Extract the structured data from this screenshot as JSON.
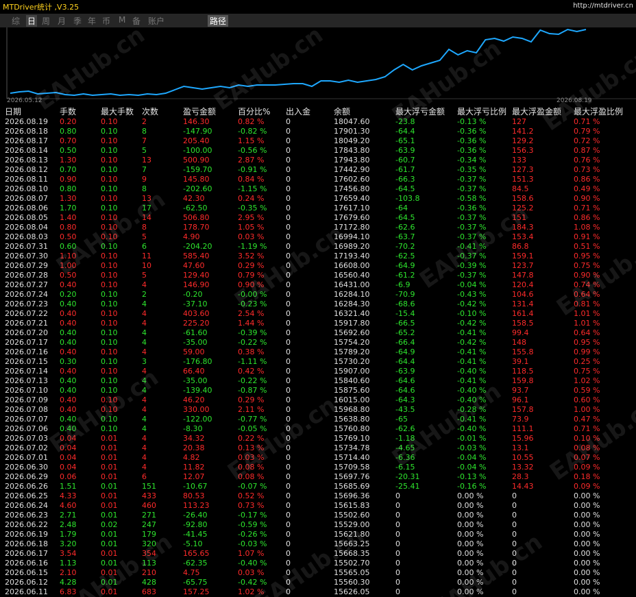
{
  "header": {
    "title": "MTDriver统计 ,V3.25",
    "url": "http://mtdriver.cn"
  },
  "tabs": [
    "综",
    "日",
    "周",
    "月",
    "季",
    "年",
    "币",
    "M",
    "备",
    "账户"
  ],
  "active_tab": 1,
  "path_button": "路径",
  "watermark": "EAHub.cn",
  "chart": {
    "type": "line",
    "color": "#1ea8ff",
    "x_start": "2026.05.12",
    "x_end": "2026.08.19",
    "ylim": [
      14800,
      18200
    ],
    "values": [
      15000,
      15067,
      15100,
      14967,
      15000,
      15033,
      14933,
      14900,
      14967,
      14900,
      14933,
      14967,
      14900,
      14933,
      14900,
      14967,
      14933,
      15000,
      15167,
      15333,
      15267,
      15200,
      15267,
      15333,
      15267,
      15400,
      15333,
      15400,
      15400,
      15400,
      15433,
      15467,
      15467,
      15333,
      15600,
      15600,
      15533,
      15633,
      15533,
      15600,
      15667,
      15800,
      16133,
      16400,
      16133,
      16333,
      16467,
      16600,
      17133,
      16867,
      17067,
      16967,
      17600,
      17667,
      17533,
      17733,
      17667,
      17500,
      18067,
      17900,
      17867,
      18100,
      18000,
      18100
    ]
  },
  "table": {
    "columns": [
      "日期",
      "手数",
      "最大手数",
      "次数",
      "盈亏金额",
      "百分比%",
      "出入金",
      "余额",
      "最大浮亏金额",
      "最大浮亏比例",
      "最大浮盈金额",
      "最大浮盈比例"
    ],
    "rows": [
      [
        "2026.08.19",
        "0.20",
        "0.10",
        "2",
        "146.30",
        "0.82 %",
        "0",
        "18047.60",
        "-23.8",
        "-0.13 %",
        "127",
        "0.71 %"
      ],
      [
        "2026.08.18",
        "0.80",
        "0.10",
        "8",
        "-147.90",
        "-0.82 %",
        "0",
        "17901.30",
        "-64.4",
        "-0.36 %",
        "141.2",
        "0.79 %"
      ],
      [
        "2026.08.17",
        "0.70",
        "0.10",
        "7",
        "205.40",
        "1.15 %",
        "0",
        "18049.20",
        "-65.1",
        "-0.36 %",
        "129.2",
        "0.72 %"
      ],
      [
        "2026.08.14",
        "0.50",
        "0.10",
        "5",
        "-100.00",
        "-0.56 %",
        "0",
        "17843.80",
        "-63.9",
        "-0.36 %",
        "156.3",
        "0.87 %"
      ],
      [
        "2026.08.13",
        "1.30",
        "0.10",
        "13",
        "500.90",
        "2.87 %",
        "0",
        "17943.80",
        "-60.7",
        "-0.34 %",
        "133",
        "0.76 %"
      ],
      [
        "2026.08.12",
        "0.70",
        "0.10",
        "7",
        "-159.70",
        "-0.91 %",
        "0",
        "17442.90",
        "-61.7",
        "-0.35 %",
        "127.3",
        "0.73 %"
      ],
      [
        "2026.08.11",
        "0.90",
        "0.10",
        "9",
        "145.80",
        "0.84 %",
        "0",
        "17602.60",
        "-66.3",
        "-0.37 %",
        "151.3",
        "0.86 %"
      ],
      [
        "2026.08.10",
        "0.80",
        "0.10",
        "8",
        "-202.60",
        "-1.15 %",
        "0",
        "17456.80",
        "-64.5",
        "-0.37 %",
        "84.5",
        "0.49 %"
      ],
      [
        "2026.08.07",
        "1.30",
        "0.10",
        "13",
        "42.30",
        "0.24 %",
        "0",
        "17659.40",
        "-103.8",
        "-0.58 %",
        "158.6",
        "0.90 %"
      ],
      [
        "2026.08.06",
        "1.70",
        "0.10",
        "17",
        "-62.50",
        "-0.35 %",
        "0",
        "17617.10",
        "-64",
        "-0.36 %",
        "125.2",
        "0.71 %"
      ],
      [
        "2026.08.05",
        "1.40",
        "0.10",
        "14",
        "506.80",
        "2.95 %",
        "0",
        "17679.60",
        "-64.5",
        "-0.37 %",
        "151",
        "0.86 %"
      ],
      [
        "2026.08.04",
        "0.80",
        "0.10",
        "8",
        "178.70",
        "1.05 %",
        "0",
        "17172.80",
        "-62.6",
        "-0.37 %",
        "184.3",
        "1.08 %"
      ],
      [
        "2026.08.03",
        "0.50",
        "0.10",
        "5",
        "4.90",
        "0.03 %",
        "0",
        "16994.10",
        "-63.7",
        "-0.37 %",
        "153.4",
        "0.91 %"
      ],
      [
        "2026.07.31",
        "0.60",
        "0.10",
        "6",
        "-204.20",
        "-1.19 %",
        "0",
        "16989.20",
        "-70.2",
        "-0.41 %",
        "86.8",
        "0.51 %"
      ],
      [
        "2026.07.30",
        "1.10",
        "0.10",
        "11",
        "585.40",
        "3.52 %",
        "0",
        "17193.40",
        "-62.5",
        "-0.37 %",
        "159.1",
        "0.95 %"
      ],
      [
        "2026.07.29",
        "1.00",
        "0.10",
        "10",
        "47.60",
        "0.29 %",
        "0",
        "16608.00",
        "-64.9",
        "-0.39 %",
        "123.7",
        "0.75 %"
      ],
      [
        "2026.07.28",
        "0.50",
        "0.10",
        "5",
        "129.40",
        "0.79 %",
        "0",
        "16560.40",
        "-61.2",
        "-0.37 %",
        "147.8",
        "0.90 %"
      ],
      [
        "2026.07.27",
        "0.40",
        "0.10",
        "4",
        "146.90",
        "0.90 %",
        "0",
        "16431.00",
        "-6.9",
        "-0.04 %",
        "120.4",
        "0.74 %"
      ],
      [
        "2026.07.24",
        "0.20",
        "0.10",
        "2",
        "-0.20",
        "-0.00 %",
        "0",
        "16284.10",
        "-70.9",
        "-0.43 %",
        "104.6",
        "0.64 %"
      ],
      [
        "2026.07.23",
        "0.40",
        "0.10",
        "4",
        "-37.10",
        "-0.23 %",
        "0",
        "16284.30",
        "-68.6",
        "-0.42 %",
        "131.4",
        "0.81 %"
      ],
      [
        "2026.07.22",
        "0.40",
        "0.10",
        "4",
        "403.60",
        "2.54 %",
        "0",
        "16321.40",
        "-15.4",
        "-0.10 %",
        "161.4",
        "1.01 %"
      ],
      [
        "2026.07.21",
        "0.40",
        "0.10",
        "4",
        "225.20",
        "1.44 %",
        "0",
        "15917.80",
        "-66.5",
        "-0.42 %",
        "158.5",
        "1.01 %"
      ],
      [
        "2026.07.20",
        "0.40",
        "0.10",
        "4",
        "-61.60",
        "-0.39 %",
        "0",
        "15692.60",
        "-65.2",
        "-0.41 %",
        "99.4",
        "0.64 %"
      ],
      [
        "2026.07.17",
        "0.40",
        "0.10",
        "4",
        "-35.00",
        "-0.22 %",
        "0",
        "15754.20",
        "-66.4",
        "-0.42 %",
        "148",
        "0.95 %"
      ],
      [
        "2026.07.16",
        "0.40",
        "0.10",
        "4",
        "59.00",
        "0.38 %",
        "0",
        "15789.20",
        "-64.9",
        "-0.41 %",
        "155.8",
        "0.99 %"
      ],
      [
        "2026.07.15",
        "0.30",
        "0.10",
        "3",
        "-176.80",
        "-1.11 %",
        "0",
        "15730.20",
        "-64.4",
        "-0.41 %",
        "39.1",
        "0.25 %"
      ],
      [
        "2026.07.14",
        "0.40",
        "0.10",
        "4",
        "66.40",
        "0.42 %",
        "0",
        "15907.00",
        "-63.9",
        "-0.40 %",
        "118.5",
        "0.75 %"
      ],
      [
        "2026.07.13",
        "0.40",
        "0.10",
        "4",
        "-35.00",
        "-0.22 %",
        "0",
        "15840.60",
        "-64.6",
        "-0.41 %",
        "159.8",
        "1.02 %"
      ],
      [
        "2026.07.10",
        "0.40",
        "0.10",
        "4",
        "-139.40",
        "-0.87 %",
        "0",
        "15875.60",
        "-64.6",
        "-0.40 %",
        "93.7",
        "0.59 %"
      ],
      [
        "2026.07.09",
        "0.40",
        "0.10",
        "4",
        "46.20",
        "0.29 %",
        "0",
        "16015.00",
        "-64.3",
        "-0.40 %",
        "96.1",
        "0.60 %"
      ],
      [
        "2026.07.08",
        "0.40",
        "0.10",
        "4",
        "330.00",
        "2.11 %",
        "0",
        "15968.80",
        "-43.5",
        "-0.28 %",
        "157.8",
        "1.00 %"
      ],
      [
        "2026.07.07",
        "0.40",
        "0.10",
        "4",
        "-122.00",
        "-0.77 %",
        "0",
        "15638.80",
        "-65",
        "-0.41 %",
        "73.9",
        "0.47 %"
      ],
      [
        "2026.07.06",
        "0.40",
        "0.10",
        "4",
        "-8.30",
        "-0.05 %",
        "0",
        "15760.80",
        "-62.6",
        "-0.40 %",
        "111.1",
        "0.71 %"
      ],
      [
        "2026.07.03",
        "0.04",
        "0.01",
        "4",
        "34.32",
        "0.22 %",
        "0",
        "15769.10",
        "-1.18",
        "-0.01 %",
        "15.96",
        "0.10 %"
      ],
      [
        "2026.07.02",
        "0.04",
        "0.01",
        "4",
        "20.38",
        "0.13 %",
        "0",
        "15734.78",
        "-4.65",
        "-0.03 %",
        "13.1",
        "0.08 %"
      ],
      [
        "2026.07.01",
        "0.04",
        "0.01",
        "4",
        "4.82",
        "0.03 %",
        "0",
        "15714.40",
        "-6.36",
        "-0.04 %",
        "10.55",
        "0.07 %"
      ],
      [
        "2026.06.30",
        "0.04",
        "0.01",
        "4",
        "11.82",
        "0.08 %",
        "0",
        "15709.58",
        "-6.15",
        "-0.04 %",
        "13.32",
        "0.09 %"
      ],
      [
        "2026.06.29",
        "0.06",
        "0.01",
        "6",
        "12.07",
        "0.08 %",
        "0",
        "15697.76",
        "-20.31",
        "-0.13 %",
        "28.3",
        "0.18 %"
      ],
      [
        "2026.06.26",
        "1.51",
        "0.01",
        "151",
        "-10.67",
        "-0.07 %",
        "0",
        "15685.69",
        "-25.41",
        "-0.16 %",
        "14.43",
        "0.09 %"
      ],
      [
        "2026.06.25",
        "4.33",
        "0.01",
        "433",
        "80.53",
        "0.52 %",
        "0",
        "15696.36",
        "0",
        "0.00 %",
        "0",
        "0.00 %"
      ],
      [
        "2026.06.24",
        "4.60",
        "0.01",
        "460",
        "113.23",
        "0.73 %",
        "0",
        "15615.83",
        "0",
        "0.00 %",
        "0",
        "0.00 %"
      ],
      [
        "2026.06.23",
        "2.71",
        "0.01",
        "271",
        "-26.40",
        "-0.17 %",
        "0",
        "15502.60",
        "0",
        "0.00 %",
        "0",
        "0.00 %"
      ],
      [
        "2026.06.22",
        "2.48",
        "0.02",
        "247",
        "-92.80",
        "-0.59 %",
        "0",
        "15529.00",
        "0",
        "0.00 %",
        "0",
        "0.00 %"
      ],
      [
        "2026.06.19",
        "1.79",
        "0.01",
        "179",
        "-41.45",
        "-0.26 %",
        "0",
        "15621.80",
        "0",
        "0.00 %",
        "0",
        "0.00 %"
      ],
      [
        "2026.06.18",
        "3.20",
        "0.01",
        "320",
        "-5.10",
        "-0.03 %",
        "0",
        "15663.25",
        "0",
        "0.00 %",
        "0",
        "0.00 %"
      ],
      [
        "2026.06.17",
        "3.54",
        "0.01",
        "354",
        "165.65",
        "1.07 %",
        "0",
        "15668.35",
        "0",
        "0.00 %",
        "0",
        "0.00 %"
      ],
      [
        "2026.06.16",
        "1.13",
        "0.01",
        "113",
        "-62.35",
        "-0.40 %",
        "0",
        "15502.70",
        "0",
        "0.00 %",
        "0",
        "0.00 %"
      ],
      [
        "2026.06.15",
        "2.10",
        "0.01",
        "210",
        "4.75",
        "0.03 %",
        "0",
        "15565.05",
        "0",
        "0.00 %",
        "0",
        "0.00 %"
      ],
      [
        "2026.06.12",
        "4.28",
        "0.01",
        "428",
        "-65.75",
        "-0.42 %",
        "0",
        "15560.30",
        "0",
        "0.00 %",
        "0",
        "0.00 %"
      ],
      [
        "2026.06.11",
        "6.83",
        "0.01",
        "683",
        "157.25",
        "1.02 %",
        "0",
        "15626.05",
        "0",
        "0.00 %",
        "0",
        "0.00 %"
      ]
    ]
  }
}
